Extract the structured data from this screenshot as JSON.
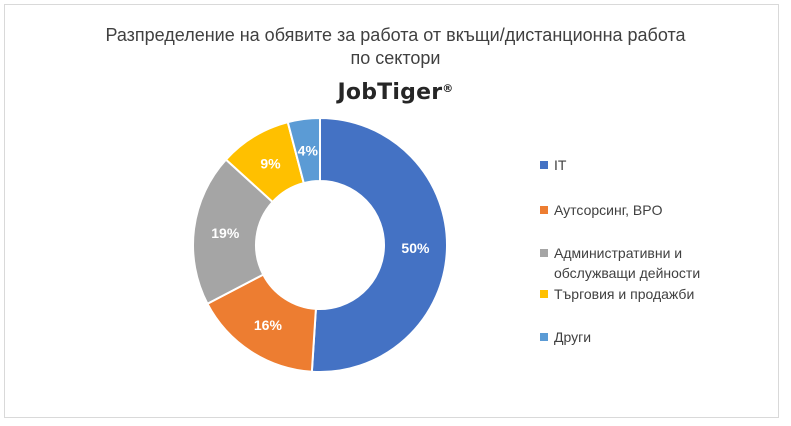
{
  "chart_data": {
    "type": "pie",
    "variant": "donut",
    "title_lines": [
      "Разпределение на обявите за работа от вкъщи/дистанционна работа",
      "по сектори"
    ],
    "logo_text": "JobTiger",
    "logo_mark": "®",
    "categories": [
      "IT",
      "Аутсорсинг, BPO",
      "Административни и обслужващи дейности",
      "Търговия и продажби",
      "Други"
    ],
    "values": [
      50,
      16,
      19,
      9,
      4
    ],
    "data_labels": [
      "50%",
      "16%",
      "19%",
      "9%",
      "4%"
    ],
    "colors": [
      "#4472C4",
      "#ED7D31",
      "#A5A5A5",
      "#FFC000",
      "#5B9BD5"
    ],
    "legend_position": "right"
  }
}
